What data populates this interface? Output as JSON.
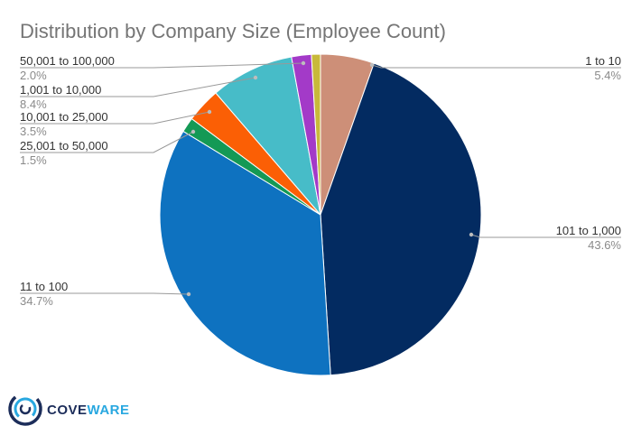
{
  "chart_data": {
    "type": "pie",
    "title": "Distribution by Company Size (Employee Count)",
    "slices": [
      {
        "label": "1 to 10",
        "value": 5.4,
        "pct_label": "5.4%",
        "color": "#cd8f78"
      },
      {
        "label": "101 to 1,000",
        "value": 43.6,
        "pct_label": "43.6%",
        "color": "#032b61"
      },
      {
        "label": "11 to 100",
        "value": 34.7,
        "pct_label": "34.7%",
        "color": "#0e72c0"
      },
      {
        "label": "25,001 to 50,000",
        "value": 1.5,
        "pct_label": "1.5%",
        "color": "#149955"
      },
      {
        "label": "10,001 to 25,000",
        "value": 3.5,
        "pct_label": "3.5%",
        "color": "#fb5f05"
      },
      {
        "label": "1,001 to 10,000",
        "value": 8.4,
        "pct_label": "8.4%",
        "color": "#47bcc8"
      },
      {
        "label": "50,001 to 100,000",
        "value": 2.0,
        "pct_label": "2.0%",
        "color": "#a33ac8"
      },
      {
        "label": "",
        "value": 0.9,
        "pct_label": "",
        "color": "#c8b93a"
      }
    ],
    "legend": "none",
    "start": "top",
    "direction": "clockwise"
  },
  "logo": {
    "text_a": "COVE",
    "text_b": "WARE",
    "color_dark": "#1c2d5a",
    "color_accent": "#29a8e0"
  }
}
